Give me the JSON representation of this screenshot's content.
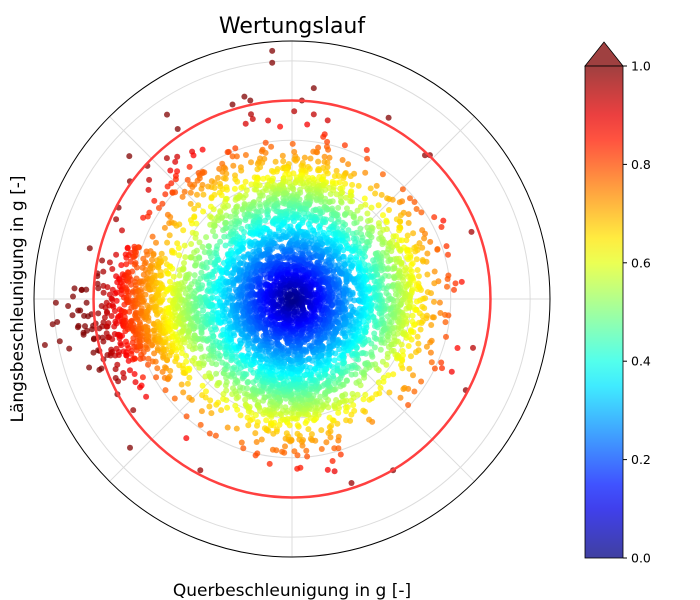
{
  "chart_data": {
    "type": "scatter",
    "projection": "polar",
    "title": "Wertungslauf",
    "xlabel": "Querbeschleunigung in g [-]",
    "ylabel": "Längsbeschleunigung in g [-]",
    "rlim": [
      0,
      1.3
    ],
    "r_grid": [
      0.2,
      0.4,
      0.6,
      0.8,
      1.0,
      1.2
    ],
    "theta_grid_deg": [
      0,
      45,
      90,
      135,
      180,
      225,
      270,
      315
    ],
    "grid": true,
    "limit_circle": {
      "r": 1.0,
      "color": "#ff4040"
    },
    "colormap": "jet",
    "color_value": "radius in g, normalized to limit circle",
    "alpha": 0.75,
    "colorbar": {
      "range": [
        0.0,
        1.0
      ],
      "extend": "max",
      "ticks": [
        0.0,
        0.2,
        0.4,
        0.6,
        0.8,
        1.0
      ],
      "tick_labels": [
        "0.0",
        "0.2",
        "0.4",
        "0.6",
        "0.8",
        "1.0"
      ],
      "placement": "right"
    },
    "point_clusters": [
      {
        "name": "core",
        "mean": [
          0.0,
          0.0
        ],
        "sd": [
          0.27,
          0.27
        ],
        "n": 3200
      },
      {
        "name": "left-lobe",
        "mean": [
          -0.68,
          -0.06
        ],
        "sd": [
          0.17,
          0.15
        ],
        "n": 700
      },
      {
        "name": "top-lobe",
        "mean": [
          0.02,
          0.52
        ],
        "sd": [
          0.15,
          0.12
        ],
        "n": 350
      },
      {
        "name": "bottom-lobe",
        "mean": [
          -0.02,
          -0.5
        ],
        "sd": [
          0.14,
          0.11
        ],
        "n": 350
      },
      {
        "name": "right-lobe",
        "mean": [
          0.55,
          0.03
        ],
        "sd": [
          0.1,
          0.2
        ],
        "n": 300
      },
      {
        "name": "top-left-scatter",
        "mean": [
          -0.45,
          0.55
        ],
        "sd": [
          0.15,
          0.12
        ],
        "n": 90
      }
    ],
    "outlier_points": [
      [
        -0.1,
        1.25
      ],
      [
        -0.1,
        1.19
      ],
      [
        -0.24,
        1.02
      ],
      [
        -0.21,
        1.0
      ],
      [
        0.05,
        1.0
      ],
      [
        -0.82,
        0.72
      ],
      [
        -0.72,
        0.6
      ],
      [
        0.11,
        0.93
      ],
      [
        -0.3,
        0.98
      ],
      [
        0.18,
        0.9
      ],
      [
        -1.0,
        -0.27
      ],
      [
        -0.96,
        -0.35
      ],
      [
        -1.05,
        -0.18
      ],
      [
        -0.88,
        -0.48
      ],
      [
        -0.8,
        -0.56
      ],
      [
        0.7,
        -0.27
      ],
      [
        0.72,
        -0.35
      ],
      [
        -0.05,
        -0.77
      ],
      [
        0.05,
        -0.72
      ]
    ],
    "random_seed": 7
  }
}
